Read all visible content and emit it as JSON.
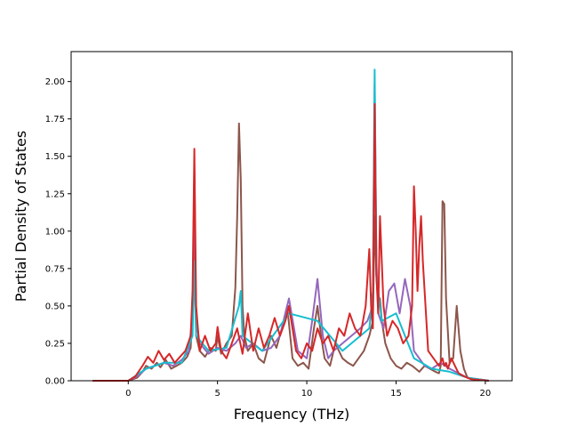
{
  "chart_data": {
    "type": "line",
    "title": "",
    "xlabel": "Frequency (THz)",
    "ylabel": "Partial Density of States",
    "xlim": [
      -3.2,
      21.5
    ],
    "ylim": [
      0,
      2.2
    ],
    "xticks": [
      0,
      5,
      10,
      15,
      20
    ],
    "xtick_labels": [
      "0",
      "5",
      "10",
      "15",
      "20"
    ],
    "yticks": [
      0,
      0.25,
      0.5,
      0.75,
      1.0,
      1.25,
      1.5,
      1.75,
      2.0
    ],
    "ytick_labels": [
      "0.00",
      "0.25",
      "0.50",
      "0.75",
      "1.00",
      "1.25",
      "1.50",
      "1.75",
      "2.00"
    ],
    "grid": false,
    "legend": "none",
    "series": [
      {
        "color": "#8c564b",
        "x": [
          -2.0,
          0.0,
          0.5,
          0.8,
          1.0,
          1.3,
          1.6,
          1.8,
          2.1,
          2.4,
          2.7,
          3.0,
          3.3,
          3.5,
          3.6,
          3.7,
          3.8,
          4.0,
          4.3,
          4.6,
          4.9,
          5.0,
          5.2,
          5.5,
          5.8,
          6.0,
          6.1,
          6.2,
          6.3,
          6.4,
          6.5,
          6.7,
          7.0,
          7.3,
          7.6,
          8.0,
          8.3,
          8.6,
          8.9,
          9.2,
          9.5,
          9.8,
          10.1,
          10.4,
          10.6,
          10.8,
          11.0,
          11.3,
          11.6,
          12.0,
          12.3,
          12.6,
          12.9,
          13.2,
          13.5,
          13.7,
          13.8,
          13.9,
          14.0,
          14.1,
          14.2,
          14.4,
          14.7,
          15.0,
          15.3,
          15.6,
          15.9,
          16.1,
          16.3,
          16.6,
          16.9,
          17.2,
          17.4,
          17.5,
          17.6,
          17.7,
          17.8,
          18.0,
          18.2,
          18.4,
          18.6,
          18.8,
          19.0,
          20.2
        ],
        "y": [
          0.0,
          0.0,
          0.02,
          0.06,
          0.1,
          0.08,
          0.12,
          0.09,
          0.14,
          0.08,
          0.1,
          0.12,
          0.16,
          0.22,
          0.5,
          0.9,
          0.3,
          0.2,
          0.16,
          0.22,
          0.2,
          0.3,
          0.18,
          0.25,
          0.3,
          0.62,
          1.1,
          1.72,
          1.35,
          0.5,
          0.3,
          0.2,
          0.25,
          0.15,
          0.12,
          0.3,
          0.22,
          0.35,
          0.5,
          0.15,
          0.1,
          0.12,
          0.08,
          0.35,
          0.5,
          0.3,
          0.15,
          0.1,
          0.25,
          0.15,
          0.12,
          0.1,
          0.15,
          0.2,
          0.3,
          0.4,
          1.1,
          0.7,
          0.5,
          0.55,
          0.4,
          0.25,
          0.15,
          0.1,
          0.08,
          0.12,
          0.1,
          0.08,
          0.06,
          0.1,
          0.08,
          0.06,
          0.05,
          0.1,
          1.2,
          1.18,
          0.55,
          0.12,
          0.15,
          0.5,
          0.2,
          0.08,
          0.02,
          0.0
        ]
      },
      {
        "color": "#9467bd",
        "x": [
          -2.0,
          0.0,
          0.5,
          1.0,
          1.5,
          2.0,
          2.5,
          3.0,
          3.4,
          3.6,
          3.7,
          3.8,
          4.0,
          4.5,
          5.0,
          5.5,
          6.0,
          6.3,
          6.6,
          7.0,
          7.5,
          8.0,
          8.5,
          9.0,
          9.5,
          10.0,
          10.3,
          10.6,
          10.9,
          11.2,
          11.5,
          12.0,
          12.5,
          13.0,
          13.4,
          13.7,
          13.8,
          13.9,
          14.0,
          14.3,
          14.6,
          14.9,
          15.2,
          15.5,
          15.8,
          16.0,
          16.3,
          16.6,
          17.0,
          17.5,
          18.0,
          18.5,
          19.0,
          20.2
        ],
        "y": [
          0.0,
          0.0,
          0.03,
          0.08,
          0.1,
          0.12,
          0.1,
          0.14,
          0.2,
          0.45,
          1.4,
          0.4,
          0.25,
          0.18,
          0.22,
          0.2,
          0.25,
          0.3,
          0.22,
          0.25,
          0.2,
          0.22,
          0.3,
          0.55,
          0.2,
          0.15,
          0.4,
          0.68,
          0.3,
          0.15,
          0.2,
          0.25,
          0.3,
          0.35,
          0.4,
          0.5,
          1.98,
          0.8,
          0.45,
          0.35,
          0.6,
          0.65,
          0.45,
          0.68,
          0.5,
          0.2,
          0.15,
          0.1,
          0.08,
          0.12,
          0.08,
          0.05,
          0.02,
          0.0
        ]
      },
      {
        "color": "#17becf",
        "x": [
          -2.0,
          0.0,
          1.0,
          2.0,
          3.0,
          3.6,
          3.7,
          3.8,
          4.5,
          5.5,
          6.2,
          6.3,
          6.4,
          7.5,
          9.0,
          10.6,
          12.0,
          13.5,
          13.7,
          13.8,
          13.9,
          14.2,
          15.0,
          16.0,
          17.0,
          18.0,
          19.0,
          20.2
        ],
        "y": [
          0.0,
          0.0,
          0.08,
          0.12,
          0.12,
          0.3,
          0.8,
          0.3,
          0.2,
          0.22,
          0.5,
          0.6,
          0.3,
          0.2,
          0.45,
          0.4,
          0.2,
          0.35,
          0.6,
          2.08,
          0.7,
          0.4,
          0.45,
          0.15,
          0.08,
          0.06,
          0.02,
          0.0
        ]
      },
      {
        "color": "#d62728",
        "x": [
          -2.0,
          0.0,
          0.4,
          0.8,
          1.1,
          1.4,
          1.7,
          2.0,
          2.3,
          2.6,
          2.9,
          3.2,
          3.5,
          3.6,
          3.7,
          3.8,
          4.0,
          4.3,
          4.6,
          4.9,
          5.0,
          5.2,
          5.5,
          5.8,
          6.1,
          6.4,
          6.7,
          7.0,
          7.3,
          7.6,
          7.9,
          8.2,
          8.5,
          8.8,
          9.0,
          9.2,
          9.4,
          9.7,
          10.0,
          10.3,
          10.6,
          10.9,
          11.2,
          11.5,
          11.8,
          12.1,
          12.4,
          12.7,
          13.0,
          13.3,
          13.5,
          13.6,
          13.7,
          13.8,
          13.9,
          14.0,
          14.1,
          14.3,
          14.5,
          14.8,
          15.1,
          15.4,
          15.7,
          15.9,
          16.0,
          16.1,
          16.2,
          16.3,
          16.4,
          16.5,
          16.8,
          17.1,
          17.4,
          17.6,
          17.7,
          17.8,
          17.9,
          18.1,
          18.3,
          18.5,
          18.8,
          19.2,
          20.2
        ],
        "y": [
          0.0,
          0.0,
          0.03,
          0.1,
          0.16,
          0.12,
          0.2,
          0.14,
          0.18,
          0.12,
          0.16,
          0.2,
          0.3,
          0.6,
          1.55,
          0.5,
          0.2,
          0.3,
          0.2,
          0.25,
          0.36,
          0.2,
          0.15,
          0.25,
          0.35,
          0.18,
          0.45,
          0.2,
          0.35,
          0.22,
          0.3,
          0.42,
          0.3,
          0.4,
          0.5,
          0.35,
          0.2,
          0.15,
          0.25,
          0.2,
          0.35,
          0.25,
          0.3,
          0.2,
          0.35,
          0.3,
          0.45,
          0.35,
          0.3,
          0.5,
          0.88,
          0.5,
          0.35,
          1.85,
          0.7,
          0.45,
          1.1,
          0.5,
          0.3,
          0.4,
          0.35,
          0.25,
          0.3,
          0.5,
          1.3,
          1.0,
          0.6,
          0.9,
          1.1,
          0.8,
          0.2,
          0.15,
          0.1,
          0.15,
          0.1,
          0.12,
          0.08,
          0.15,
          0.1,
          0.05,
          0.03,
          0.01,
          0.0
        ]
      }
    ]
  }
}
